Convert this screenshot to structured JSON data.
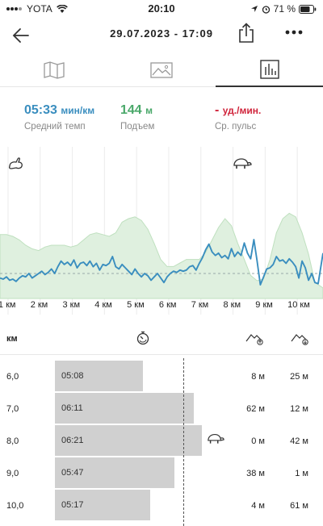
{
  "status_bar": {
    "carrier": "YOTA",
    "time": "20:10",
    "battery": "71 %"
  },
  "header": {
    "title": "29.07.2023 - 17:09"
  },
  "tabs": [
    {
      "icon": "map-icon",
      "active": false
    },
    {
      "icon": "image-icon",
      "active": false
    },
    {
      "icon": "bar-chart-icon",
      "active": true
    }
  ],
  "stats": {
    "pace": {
      "value": "05:33",
      "unit": "мин/км",
      "label": "Средний темп",
      "color": "#3a8ebf"
    },
    "ascent": {
      "value": "144",
      "unit": "м",
      "label": "Подъем",
      "color": "#4aa86a"
    },
    "heart_rate": {
      "value": "-",
      "unit": "уд./мин.",
      "label": "Ср. пульс",
      "color": "#d0243b"
    }
  },
  "chart_data": {
    "type": "line",
    "x_labels": [
      "1 км",
      "2 км",
      "3 км",
      "4 км",
      "5 км",
      "6 км",
      "7 км",
      "8 км",
      "9 км",
      "10 км"
    ],
    "x_range_km": [
      0.7,
      10.75
    ],
    "series": [
      {
        "color": "#3a8ebf",
        "x": [
          0.7,
          0.8,
          0.9,
          1.0,
          1.1,
          1.2,
          1.3,
          1.4,
          1.5,
          1.6,
          1.7,
          1.8,
          1.9,
          2.0,
          2.1,
          2.2,
          2.3,
          2.4,
          2.5,
          2.6,
          2.7,
          2.8,
          2.9,
          3.0,
          3.1,
          3.2,
          3.3,
          3.4,
          3.5,
          3.6,
          3.7,
          3.8,
          3.9,
          4.0,
          4.1,
          4.2,
          4.3,
          4.4,
          4.5,
          4.6,
          4.7,
          4.8,
          4.9,
          5.0,
          5.1,
          5.2,
          5.3,
          5.4,
          5.5,
          5.6,
          5.7,
          5.8,
          5.9,
          6.0,
          6.1,
          6.2,
          6.3,
          6.4,
          6.5,
          6.6,
          6.7,
          6.8,
          6.9,
          7.0,
          7.1,
          7.2,
          7.3,
          7.4,
          7.5,
          7.6,
          7.7,
          7.8,
          7.9,
          8.0,
          8.1,
          8.2,
          8.3,
          8.4,
          8.5,
          8.6,
          8.7,
          8.8,
          8.9,
          9.0,
          9.1,
          9.2,
          9.3,
          9.4,
          9.5,
          9.6,
          9.7,
          9.8,
          9.9,
          10.0,
          10.1,
          10.2,
          10.3,
          10.4,
          10.5,
          10.6,
          10.75
        ],
        "pace_level": [
          0.22,
          0.2,
          0.24,
          0.18,
          0.2,
          0.16,
          0.22,
          0.26,
          0.24,
          0.3,
          0.22,
          0.26,
          0.3,
          0.34,
          0.28,
          0.32,
          0.38,
          0.3,
          0.42,
          0.52,
          0.46,
          0.5,
          0.44,
          0.54,
          0.4,
          0.48,
          0.5,
          0.44,
          0.52,
          0.42,
          0.48,
          0.36,
          0.46,
          0.44,
          0.48,
          0.6,
          0.42,
          0.38,
          0.46,
          0.4,
          0.34,
          0.28,
          0.38,
          0.3,
          0.24,
          0.3,
          0.26,
          0.18,
          0.24,
          0.3,
          0.22,
          0.14,
          0.24,
          0.3,
          0.34,
          0.32,
          0.36,
          0.34,
          0.36,
          0.42,
          0.44,
          0.36,
          0.48,
          0.58,
          0.72,
          0.82,
          0.68,
          0.62,
          0.66,
          0.58,
          0.62,
          0.56,
          0.74,
          0.6,
          0.68,
          0.62,
          0.84,
          0.66,
          0.56,
          0.9,
          0.52,
          0.1,
          0.24,
          0.38,
          0.4,
          0.46,
          0.6,
          0.52,
          0.54,
          0.48,
          0.56,
          0.5,
          0.42,
          0.22,
          0.52,
          0.4,
          0.18,
          0.3,
          0.14,
          0.12,
          0.66
        ]
      }
    ],
    "area": {
      "color": "#dff0df",
      "x": [
        0.7,
        0.9,
        1.1,
        1.3,
        1.5,
        1.7,
        1.9,
        2.1,
        2.3,
        2.5,
        2.7,
        2.9,
        3.1,
        3.3,
        3.5,
        3.7,
        3.9,
        4.1,
        4.3,
        4.5,
        4.7,
        4.9,
        5.1,
        5.3,
        5.5,
        5.7,
        5.9,
        6.1,
        6.3,
        6.5,
        6.7,
        6.9,
        7.1,
        7.3,
        7.5,
        7.7,
        7.9,
        8.1,
        8.3,
        8.5,
        8.7,
        8.9,
        9.1,
        9.3,
        9.5,
        9.7,
        9.9,
        10.1,
        10.3,
        10.5,
        10.75
      ],
      "elevation_level": [
        0.72,
        0.72,
        0.7,
        0.66,
        0.6,
        0.56,
        0.54,
        0.58,
        0.6,
        0.6,
        0.6,
        0.58,
        0.6,
        0.66,
        0.72,
        0.74,
        0.72,
        0.7,
        0.74,
        0.86,
        0.9,
        0.92,
        0.88,
        0.78,
        0.62,
        0.44,
        0.36,
        0.36,
        0.4,
        0.44,
        0.44,
        0.44,
        0.52,
        0.66,
        0.8,
        0.9,
        0.82,
        0.62,
        0.44,
        0.26,
        0.2,
        0.22,
        0.44,
        0.74,
        0.9,
        0.96,
        0.92,
        0.74,
        0.5,
        0.18,
        0.12
      ]
    }
  },
  "splits": {
    "header_km": "км",
    "rows": [
      {
        "km": "6,0",
        "pace": "05:08",
        "pace_sec": 308,
        "up": "8 м",
        "down": "25 м",
        "slowest": false
      },
      {
        "km": "7,0",
        "pace": "06:11",
        "pace_sec": 371,
        "up": "62 м",
        "down": "12 м",
        "slowest": false
      },
      {
        "km": "8,0",
        "pace": "06:21",
        "pace_sec": 381,
        "up": "0 м",
        "down": "42 м",
        "slowest": true
      },
      {
        "km": "9,0",
        "pace": "05:47",
        "pace_sec": 347,
        "up": "38 м",
        "down": "1 м",
        "slowest": false
      },
      {
        "km": "10,0",
        "pace": "05:17",
        "pace_sec": 317,
        "up": "4 м",
        "down": "61 м",
        "slowest": false
      }
    ]
  }
}
